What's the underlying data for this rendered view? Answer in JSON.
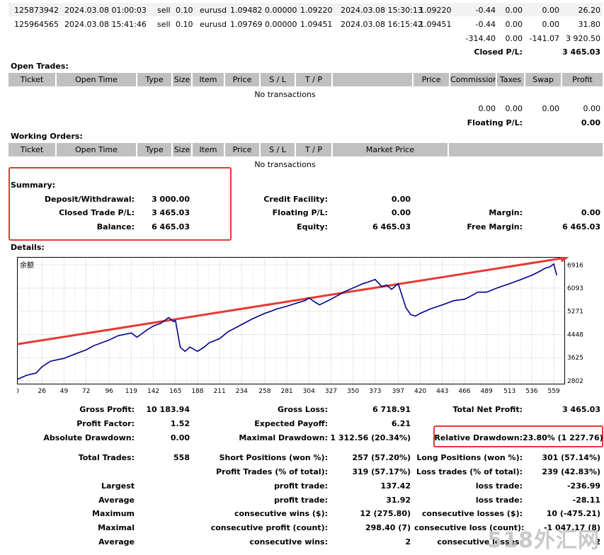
{
  "closed_trades": {
    "rows": [
      {
        "ticket": "125873942",
        "open_time": "2024.03.08 01:00:03",
        "type": "sell",
        "size": "0.10",
        "item": "eurusd",
        "price": "1.09482",
        "sl": "0.00000",
        "tp": "1.09220",
        "close_time": "2024.03.08 15:30:13",
        "close_price": "1.09220",
        "commission": "-0.44",
        "taxes": "0.00",
        "swap": "0.00",
        "profit": "26.20"
      },
      {
        "ticket": "125964565",
        "open_time": "2024.03.08 15:41:46",
        "type": "sell",
        "size": "0.10",
        "item": "eurusd",
        "price": "1.09769",
        "sl": "0.00000",
        "tp": "1.09451",
        "close_time": "2024.03.08 16:15:42",
        "close_price": "1.09451",
        "commission": "-0.44",
        "taxes": "0.00",
        "swap": "0.00",
        "profit": "31.80"
      }
    ],
    "totals": {
      "commission": "-314.40",
      "taxes": "0.00",
      "swap": "-141.07",
      "profit": "3 920.50"
    },
    "closed_pl_label": "Closed P/L:",
    "closed_pl_value": "3 465.03"
  },
  "open_trades": {
    "title": "Open Trades:",
    "headers": [
      "Ticket",
      "Open Time",
      "Type",
      "Size",
      "Item",
      "Price",
      "S / L",
      "T / P",
      "Price",
      "Commission",
      "Taxes",
      "Swap",
      "Profit"
    ],
    "empty": "No transactions",
    "totals": {
      "commission": "0.00",
      "taxes": "0.00",
      "swap": "0.00",
      "profit": "0.00"
    },
    "floating_label": "Floating P/L:",
    "floating_value": "0.00"
  },
  "working_orders": {
    "title": "Working Orders:",
    "headers": [
      "Ticket",
      "Open Time",
      "Type",
      "Size",
      "Item",
      "Price",
      "S / L",
      "T / P",
      "Market Price"
    ],
    "empty": "No transactions"
  },
  "summary": {
    "title": "Summary:",
    "deposit_label": "Deposit/Withdrawal:",
    "deposit_value": "3 000.00",
    "closed_label": "Closed Trade P/L:",
    "closed_value": "3 465.03",
    "balance_label": "Balance:",
    "balance_value": "6 465.03",
    "credit_label": "Credit Facility:",
    "credit_value": "0.00",
    "floating_label": "Floating P/L:",
    "floating_value": "0.00",
    "equity_label": "Equity:",
    "equity_value": "6 465.03",
    "margin_label": "Margin:",
    "margin_value": "0.00",
    "free_margin_label": "Free Margin:",
    "free_margin_value": "6 465.03"
  },
  "details": {
    "title": "Details:",
    "chart_legend": "余额"
  },
  "chart_data": {
    "type": "line",
    "title": "",
    "legend": "余额",
    "x_ticks": [
      0,
      26,
      49,
      72,
      96,
      119,
      142,
      165,
      188,
      211,
      234,
      258,
      281,
      304,
      327,
      350,
      373,
      397,
      420,
      443,
      466,
      489,
      513,
      536,
      559
    ],
    "y_ticks": [
      2802,
      3625,
      4448,
      5271,
      6093,
      6916
    ],
    "xlim": [
      0,
      570
    ],
    "ylim": [
      2700,
      7200
    ],
    "series": [
      {
        "name": "余额",
        "color": "#00008b",
        "x": [
          0,
          10,
          20,
          26,
          35,
          49,
          60,
          72,
          80,
          96,
          105,
          119,
          125,
          135,
          142,
          150,
          158,
          163,
          165,
          170,
          175,
          180,
          188,
          195,
          200,
          211,
          220,
          234,
          245,
          258,
          265,
          270,
          281,
          290,
          300,
          304,
          310,
          315,
          327,
          335,
          340,
          350,
          360,
          365,
          373,
          380,
          385,
          390,
          397,
          405,
          410,
          415,
          420,
          430,
          443,
          455,
          466,
          472,
          480,
          489,
          500,
          513,
          525,
          536,
          545,
          550,
          555,
          559,
          562
        ],
        "y": [
          2850,
          3000,
          3080,
          3300,
          3500,
          3600,
          3750,
          3900,
          4050,
          4250,
          4400,
          4500,
          4350,
          4600,
          4750,
          4850,
          5050,
          4900,
          4950,
          4000,
          3850,
          4000,
          3850,
          4000,
          4150,
          4300,
          4550,
          4800,
          5000,
          5200,
          5280,
          5350,
          5450,
          5550,
          5650,
          5750,
          5600,
          5500,
          5700,
          5850,
          5950,
          6100,
          6250,
          6300,
          6400,
          6150,
          6200,
          6050,
          6250,
          5400,
          5150,
          5100,
          5200,
          5350,
          5500,
          5650,
          5700,
          5800,
          5950,
          5950,
          6100,
          6250,
          6400,
          6550,
          6700,
          6800,
          6850,
          6950,
          6550
        ]
      }
    ],
    "trend_line": {
      "color": "#e53935",
      "from": {
        "x": 0,
        "y": 4100
      },
      "to": {
        "x": 575,
        "y": 7200
      }
    }
  },
  "stats": {
    "gross_profit_label": "Gross Profit:",
    "gross_profit": "10 183.94",
    "gross_loss_label": "Gross Loss:",
    "gross_loss": "6 718.91",
    "total_net_label": "Total Net Profit:",
    "total_net": "3 465.03",
    "profit_factor_label": "Profit Factor:",
    "profit_factor": "1.52",
    "expected_payoff_label": "Expected Payoff:",
    "expected_payoff": "6.21",
    "abs_dd_label": "Absolute Drawdown:",
    "abs_dd": "0.00",
    "max_dd_label": "Maximal Drawdown:",
    "max_dd": "1 312.56 (20.34%)",
    "rel_dd_label": "Relative Drawdown:",
    "rel_dd": "23.80% (1 227.76)",
    "total_trades_label": "Total Trades:",
    "total_trades": "558",
    "short_label": "Short Positions (won %):",
    "short": "257 (57.20%)",
    "long_label": "Long Positions (won %):",
    "long": "301 (57.14%)",
    "profit_trades_label": "Profit Trades (% of total):",
    "profit_trades": "319 (57.17%)",
    "loss_trades_label": "Loss trades (% of total):",
    "loss_trades": "239 (42.83%)",
    "largest_label": "Largest",
    "largest_profit_label": "profit trade:",
    "largest_profit": "137.42",
    "largest_loss_label": "loss trade:",
    "largest_loss": "-236.99",
    "average_label": "Average",
    "avg_profit_label": "profit trade:",
    "avg_profit": "31.92",
    "avg_loss_label": "loss trade:",
    "avg_loss": "-28.11",
    "maximum_label": "Maximum",
    "max_wins_label": "consecutive wins ($):",
    "max_wins": "12 (275.80)",
    "max_losses_label": "consecutive losses ($):",
    "max_losses": "10 (-475.21)",
    "maximal_label": "Maximal",
    "max_profit_label": "consecutive profit (count):",
    "max_profit": "298.40 (7)",
    "max_loss_label": "consecutive loss (count):",
    "max_loss": "-1 047.17 (8)",
    "average2_label": "Average",
    "avg_wins_label": "consecutive wins:",
    "avg_wins": "2",
    "avg_losses_label": "consecutive losses:",
    "avg_losses": "2"
  },
  "watermark": "518外汇网"
}
